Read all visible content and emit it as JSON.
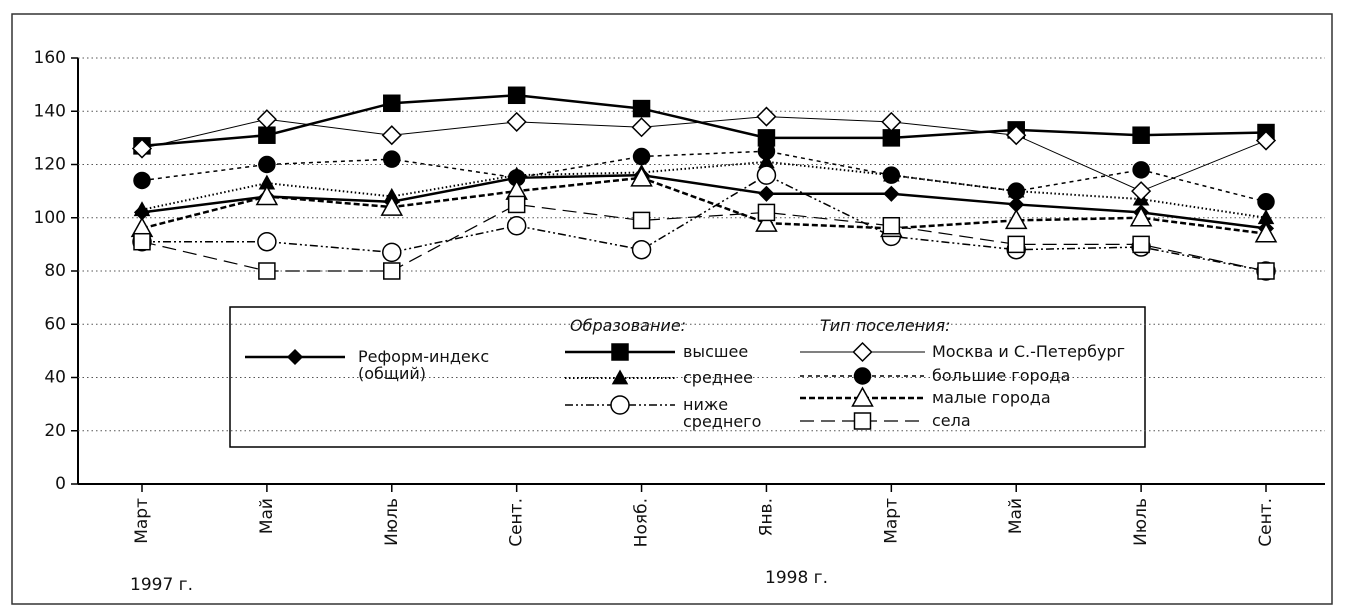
{
  "chart_data": {
    "type": "line",
    "categories": [
      "Март",
      "Май",
      "Июль",
      "Сент.",
      "Нояб.",
      "Янв.",
      "Март",
      "Май",
      "Июль",
      "Сент."
    ],
    "annotations": [
      "1997 г.",
      "1998 г."
    ],
    "legend_groups": [
      "Образование:",
      "Тип поселения:"
    ],
    "ylim": [
      0,
      160
    ],
    "yticks": [
      0,
      20,
      40,
      60,
      80,
      100,
      120,
      140,
      160
    ],
    "grid": true,
    "series": [
      {
        "name": "Реформ-индекс (общий)",
        "color": "#000",
        "marker": "diamond",
        "filled": true,
        "dash": "solid-thick",
        "values": [
          102,
          108,
          106,
          115,
          116,
          109,
          109,
          105,
          102,
          96
        ]
      },
      {
        "name": "высшее",
        "color": "#000",
        "marker": "square",
        "filled": true,
        "dash": "solid-thick",
        "values": [
          127,
          131,
          143,
          146,
          141,
          130,
          130,
          133,
          131,
          132
        ]
      },
      {
        "name": "среднее",
        "color": "#000",
        "marker": "triangle",
        "filled": true,
        "dash": "dotted",
        "values": [
          103,
          113,
          108,
          116,
          117,
          121,
          116,
          110,
          107,
          100
        ]
      },
      {
        "name": "ниже среднего",
        "color": "#000",
        "marker": "circle",
        "filled": false,
        "dash": "dashdot",
        "values": [
          91,
          91,
          87,
          97,
          88,
          116,
          93,
          88,
          89,
          80
        ]
      },
      {
        "name": "Москва и С.-Петербург",
        "color": "#000",
        "marker": "diamond",
        "filled": false,
        "dash": "solid-thin",
        "values": [
          126,
          137,
          131,
          136,
          134,
          138,
          136,
          131,
          110,
          129
        ]
      },
      {
        "name": "большие города",
        "color": "#000",
        "marker": "circle",
        "filled": true,
        "dash": "short-dash",
        "values": [
          114,
          120,
          122,
          115,
          123,
          125,
          116,
          110,
          118,
          106
        ]
      },
      {
        "name": "малые города",
        "color": "#000",
        "marker": "triangle",
        "filled": false,
        "dash": "dash-thick",
        "values": [
          96,
          108,
          104,
          110,
          115,
          98,
          96,
          99,
          100,
          94
        ]
      },
      {
        "name": "села",
        "color": "#000",
        "marker": "square",
        "filled": false,
        "dash": "long-dash",
        "values": [
          91,
          80,
          80,
          105,
          99,
          102,
          97,
          90,
          90,
          80
        ]
      }
    ]
  }
}
